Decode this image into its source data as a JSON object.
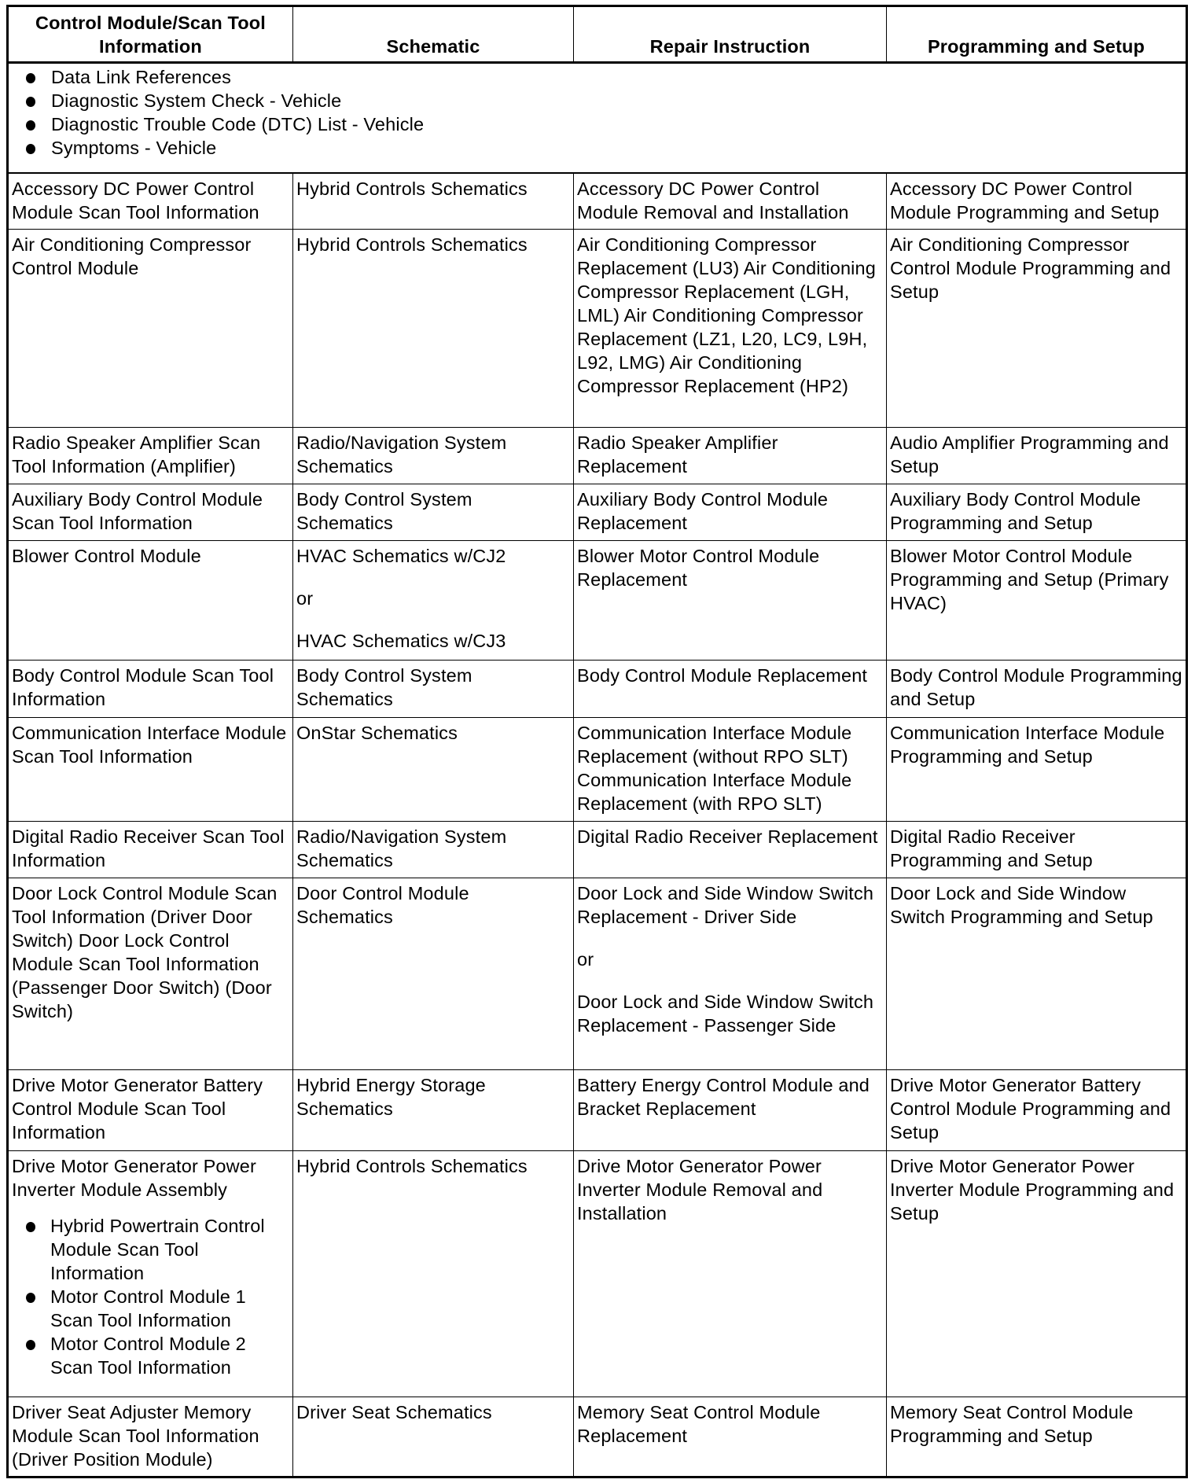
{
  "headers": [
    "Control Module/Scan Tool Information",
    "Schematic",
    "Repair Instruction",
    "Programming and Setup"
  ],
  "general_links": [
    "Data Link References",
    "Diagnostic System Check - Vehicle",
    "Diagnostic Trouble Code (DTC) List - Vehicle",
    "Symptoms - Vehicle"
  ],
  "rows": [
    {
      "module": "Accessory DC Power Control Module Scan Tool Information",
      "schematic": [
        "Hybrid Controls Schematics"
      ],
      "repair": [
        "Accessory DC Power Control Module Removal and Installation"
      ],
      "programming": "Accessory DC Power Control Module Programming and Setup"
    },
    {
      "module": "Air Conditioning Compressor Control Module",
      "schematic": [
        "Hybrid Controls Schematics"
      ],
      "repair": [
        "Air Conditioning Compressor Replacement (LU3) Air Conditioning Compressor Replacement (LGH, LML) Air Conditioning Compressor Replacement (LZ1, L20, LC9, L9H, L92, LMG) Air Conditioning Compressor Replacement (HP2)"
      ],
      "programming": "Air Conditioning Compressor Control Module Programming and Setup"
    },
    {
      "module": "Radio Speaker Amplifier Scan Tool Information (Amplifier)",
      "schematic": [
        "Radio/Navigation System Schematics"
      ],
      "repair": [
        "Radio Speaker Amplifier Replacement"
      ],
      "programming": "Audio Amplifier Programming and Setup"
    },
    {
      "module": "Auxiliary Body Control Module Scan Tool Information",
      "schematic": [
        "Body Control System Schematics"
      ],
      "repair": [
        "Auxiliary Body Control Module Replacement"
      ],
      "programming": "Auxiliary Body Control Module Programming and Setup"
    },
    {
      "module": "Blower Control Module",
      "schematic": [
        "HVAC Schematics w/CJ2",
        "or",
        "HVAC Schematics w/CJ3"
      ],
      "repair": [
        "Blower Motor Control Module Replacement"
      ],
      "programming": "Blower Motor Control Module Programming and Setup (Primary HVAC)"
    },
    {
      "module": "Body Control Module Scan Tool Information",
      "schematic": [
        "Body Control System Schematics"
      ],
      "repair": [
        "Body Control Module Replacement"
      ],
      "programming": "Body Control Module Programming and Setup"
    },
    {
      "module": "Communication Interface Module Scan Tool Information",
      "schematic": [
        "OnStar Schematics"
      ],
      "repair": [
        "Communication Interface Module Replacement (without RPO SLT) Communication Interface Module Replacement (with RPO SLT)"
      ],
      "programming": "Communication Interface Module Programming and Setup"
    },
    {
      "module": "Digital Radio Receiver Scan Tool Information",
      "schematic": [
        "Radio/Navigation System Schematics"
      ],
      "repair": [
        "Digital Radio Receiver Replacement"
      ],
      "programming": "Digital Radio Receiver Programming and Setup"
    },
    {
      "module": "Door Lock Control Module Scan Tool Information (Driver Door Switch) Door Lock Control Module Scan Tool Information (Passenger Door Switch) (Door Switch)",
      "schematic": [
        "Door Control Module Schematics"
      ],
      "repair": [
        "Door Lock and Side Window Switch Replacement - Driver Side",
        "or",
        "Door Lock and Side Window Switch Replacement - Passenger Side"
      ],
      "programming": "Door Lock and Side Window Switch Programming and Setup"
    },
    {
      "module": "Drive Motor Generator Battery Control Module Scan Tool Information",
      "schematic": [
        "Hybrid Energy Storage Schematics"
      ],
      "repair": [
        "Battery Energy Control Module and Bracket Replacement"
      ],
      "programming": "Drive Motor Generator Battery Control Module Programming and Setup"
    },
    {
      "module": "Drive Motor Generator Power Inverter Module Assembly",
      "module_items": [
        "Hybrid Powertrain Control Module Scan Tool Information",
        "Motor Control Module 1 Scan Tool Information",
        "Motor Control Module 2 Scan Tool Information"
      ],
      "schematic": [
        "Hybrid Controls Schematics"
      ],
      "repair": [
        "Drive Motor Generator Power Inverter Module Removal and Installation"
      ],
      "programming": "Drive Motor Generator Power Inverter Module Programming and Setup"
    },
    {
      "module": "Driver Seat Adjuster Memory Module Scan Tool Information (Driver Position Module)",
      "schematic": [
        "Driver Seat Schematics"
      ],
      "repair": [
        "Memory Seat Control Module Replacement"
      ],
      "programming": "Memory Seat Control Module Programming and Setup"
    }
  ]
}
